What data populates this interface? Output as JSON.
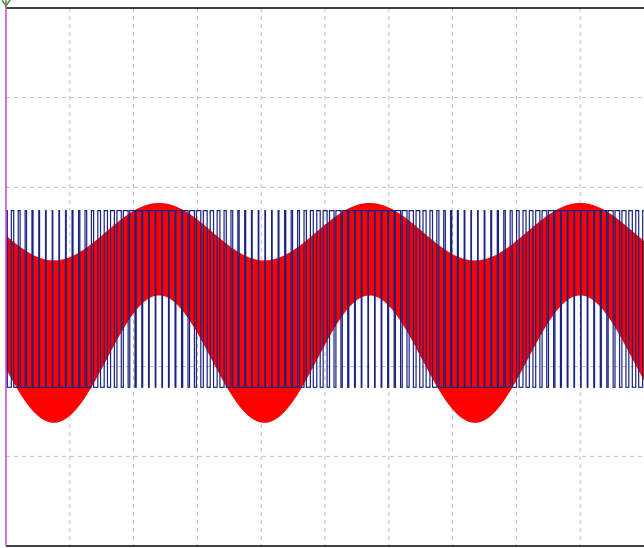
{
  "chart_data": {
    "type": "line",
    "title": "",
    "xlabel": "",
    "ylabel": "",
    "grid": true,
    "grid_divisions": {
      "x": 10,
      "y": 6
    },
    "x_range_divisions": [
      0,
      10
    ],
    "y_range_divisions": [
      0,
      6
    ],
    "colors": {
      "background": "#ffffff",
      "grid": "#c0c0c0",
      "frame": "#000000",
      "left_axis": "#cc44cc",
      "marker": "#22aa22",
      "envelope": "#ff0000",
      "pwm": "#1a237e"
    },
    "series": [
      {
        "kind": "modulated-envelope",
        "color": "#ff0000",
        "cycles": 3,
        "period_divisions": 3.3,
        "phase_peak_divisions": 2.4,
        "upper_mean": 3.5,
        "upper_amplitude": 0.32,
        "lower_mean": 2.09,
        "lower_amplitude": 0.71
      },
      {
        "kind": "pwm-square",
        "color": "#1a237e",
        "high_level": 3.74,
        "low_level": 1.77,
        "carrier_periods": 96,
        "period_divisions": 3.3,
        "phase_peak_divisions": 2.4
      }
    ]
  }
}
